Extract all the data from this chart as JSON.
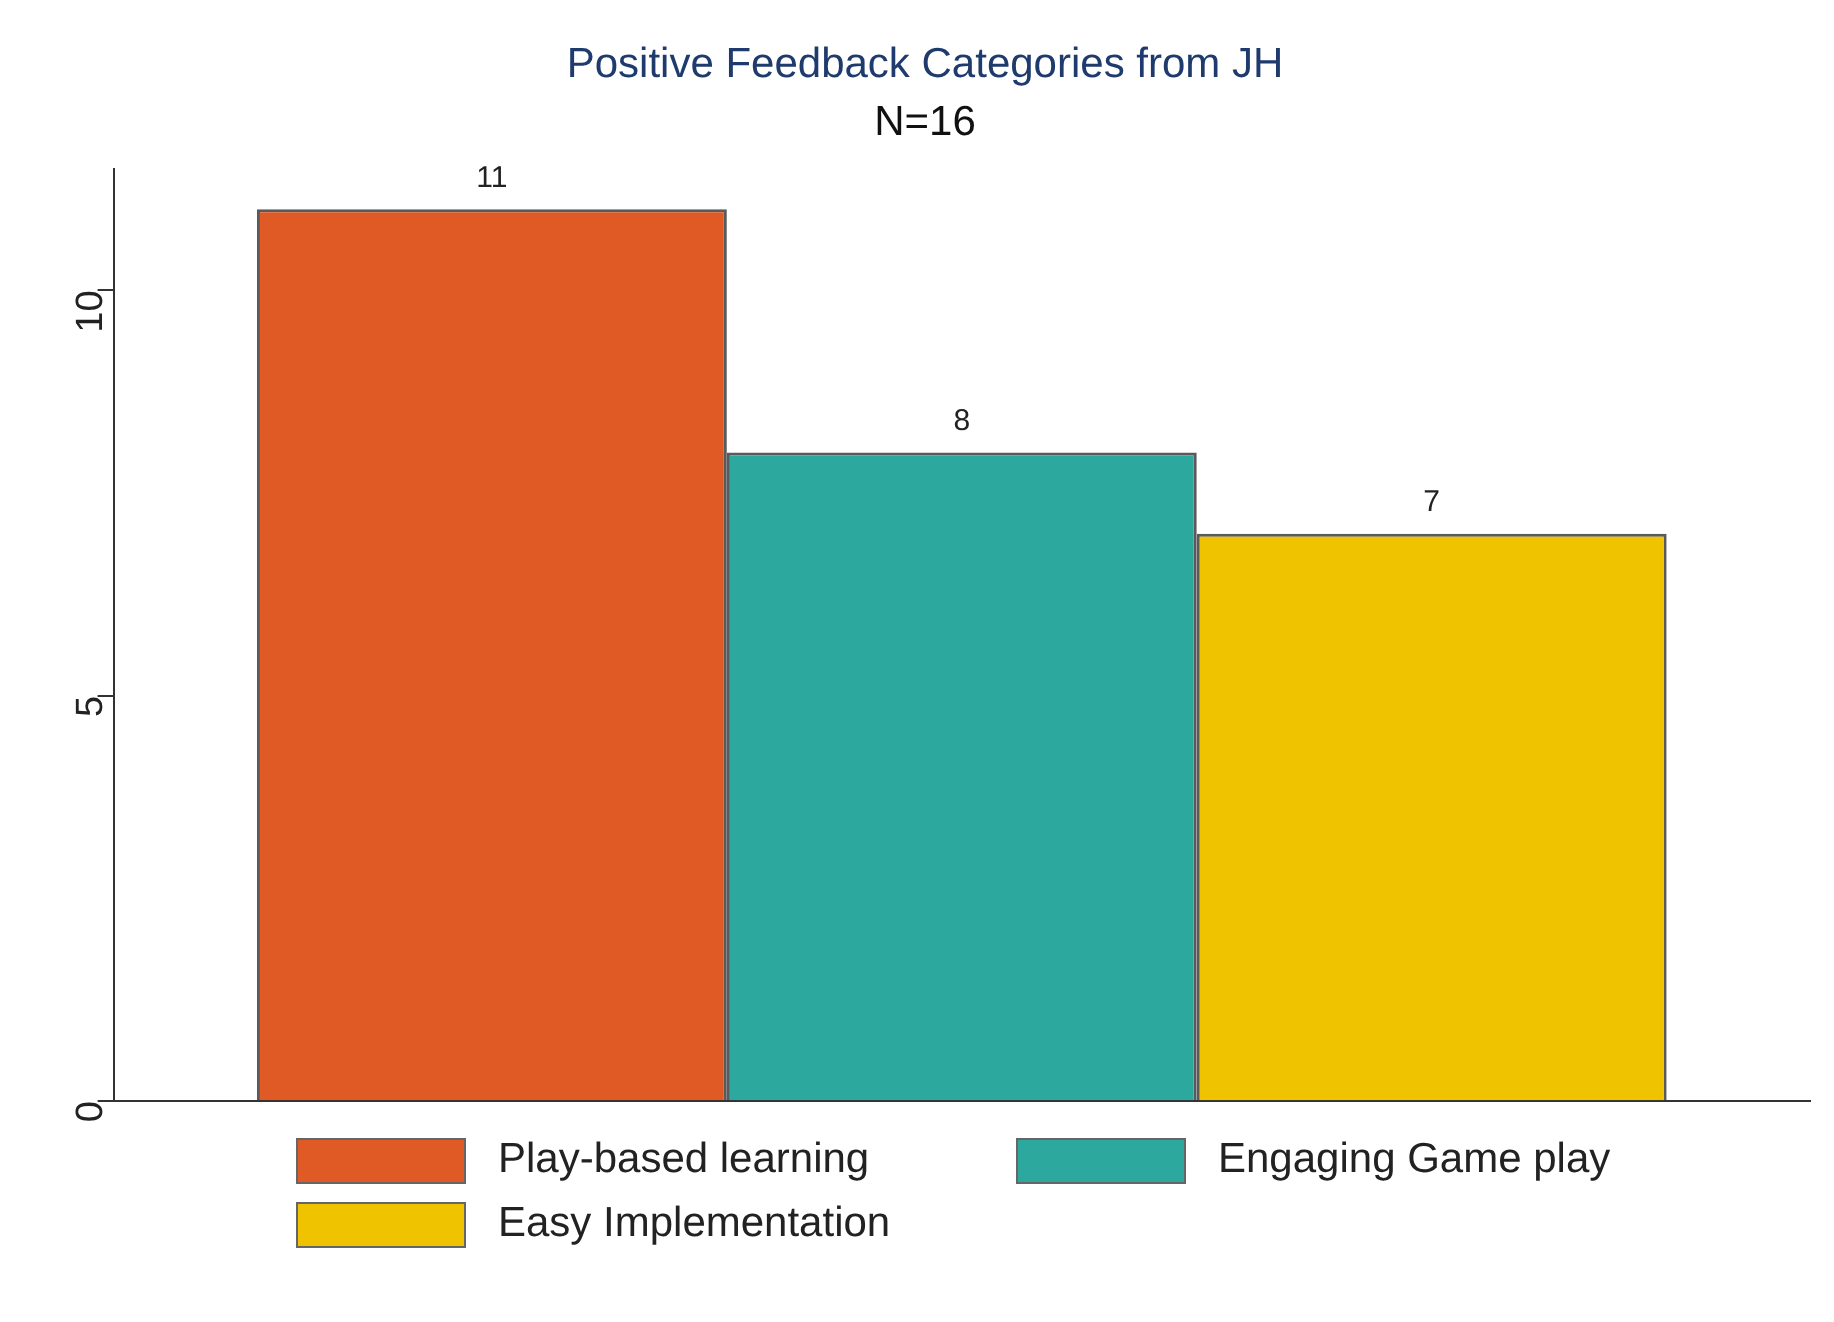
{
  "chart_data": {
    "type": "bar",
    "title": "Positive Feedback Categories from JH",
    "subtitle": "N=16",
    "categories": [
      null
    ],
    "series": [
      {
        "name": "Play-based learning",
        "color": "#e05a26",
        "values": [
          11
        ]
      },
      {
        "name": "Engaging Game play",
        "color": "#2ca89e",
        "values": [
          8
        ]
      },
      {
        "name": "Easy Implementation",
        "color": "#f0c300",
        "values": [
          7
        ]
      }
    ],
    "ylim": [
      0,
      11.5
    ],
    "yticks": [
      0,
      5,
      10
    ],
    "grid": false,
    "legend": "bottom",
    "data_labels": true
  }
}
